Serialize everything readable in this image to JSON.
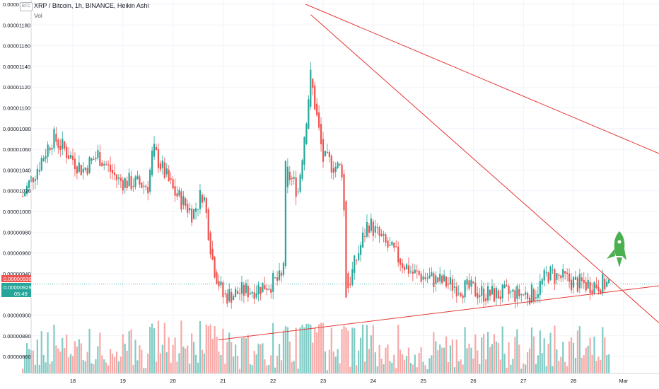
{
  "header": {
    "title": "XRP / Bitcoin, 1h, BINANCE, Heikin Ashi",
    "volume_label": "Vol",
    "currency_badge": "BTC"
  },
  "price_tags": {
    "red": "0.00000930",
    "green": "0.00000929",
    "countdown": "05:49",
    "red_color": "#ef5350",
    "green_color": "#26a69a"
  },
  "colors": {
    "up": "#26a69a",
    "down": "#ef5350",
    "vol_up": "#80cbc4",
    "vol_down": "#f7a9a7",
    "trendline": "#e53935",
    "rocket": "#4caf50"
  },
  "chart_data": {
    "type": "candlestick",
    "title": "XRP / Bitcoin, 1h, BINANCE, Heikin Ashi",
    "y_tick_labels": [
      "0.00001200",
      "0.00001180",
      "0.00001160",
      "0.00001140",
      "0.00001120",
      "0.00001100",
      "0.00001080",
      "0.00001060",
      "0.00001040",
      "0.00001020",
      "0.00001000",
      "0.00000980",
      "0.00000960",
      "0.00000940",
      "0.00000920",
      "0.00000900",
      "0.00000880",
      "0.00000860"
    ],
    "x_tick_labels": [
      "18",
      "19",
      "20",
      "21",
      "22",
      "23",
      "24",
      "25",
      "26",
      "27",
      "28",
      "Mar"
    ],
    "ylim": [
      8.5e-06,
      1.2e-05
    ],
    "x_day_range": [
      17.0,
      29.0
    ],
    "grid": true,
    "key_points": [
      {
        "day": 17.0,
        "price": 1.015e-05
      },
      {
        "day": 17.6,
        "price": 1.072e-05
      },
      {
        "day": 18.2,
        "price": 1.04e-05
      },
      {
        "day": 18.5,
        "price": 1.055e-05
      },
      {
        "day": 18.9,
        "price": 1.03e-05
      },
      {
        "day": 19.5,
        "price": 1.025e-05
      },
      {
        "day": 19.6,
        "price": 1.06e-05
      },
      {
        "day": 20.0,
        "price": 1.02e-05
      },
      {
        "day": 20.4,
        "price": 9.98e-06
      },
      {
        "day": 20.6,
        "price": 1.02e-05
      },
      {
        "day": 20.8,
        "price": 9.5e-06
      },
      {
        "day": 21.0,
        "price": 9.18e-06
      },
      {
        "day": 21.6,
        "price": 9.25e-06
      },
      {
        "day": 22.2,
        "price": 9.35e-06
      },
      {
        "day": 22.25,
        "price": 1.04e-05
      },
      {
        "day": 22.5,
        "price": 1.02e-05
      },
      {
        "day": 22.75,
        "price": 1.13e-05
      },
      {
        "day": 23.0,
        "price": 1.05e-05
      },
      {
        "day": 23.4,
        "price": 1.04e-05
      },
      {
        "day": 23.45,
        "price": 9.2e-06
      },
      {
        "day": 23.7,
        "price": 9.6e-06
      },
      {
        "day": 23.9,
        "price": 9.9e-06
      },
      {
        "day": 24.2,
        "price": 9.7e-06
      },
      {
        "day": 24.8,
        "price": 9.4e-06
      },
      {
        "day": 25.5,
        "price": 9.3e-06
      },
      {
        "day": 26.3,
        "price": 9.2e-06
      },
      {
        "day": 27.2,
        "price": 9.2e-06
      },
      {
        "day": 27.5,
        "price": 9.4e-06
      },
      {
        "day": 28.1,
        "price": 9.3e-06
      },
      {
        "day": 28.6,
        "price": 9.3e-06
      }
    ],
    "trendlines": [
      {
        "name": "upper",
        "points": [
          {
            "day": 22.65,
            "price": 1.2e-05
          },
          {
            "day": 30.0,
            "price": 1.05e-05
          }
        ]
      },
      {
        "name": "descending",
        "points": [
          {
            "day": 22.75,
            "price": 1.19e-05
          },
          {
            "day": 30.0,
            "price": 8.8e-06
          }
        ]
      },
      {
        "name": "ascending support",
        "points": [
          {
            "day": 20.9,
            "price": 8.76e-06
          },
          {
            "day": 30.0,
            "price": 9.3e-06
          }
        ]
      }
    ],
    "volume": {
      "label": "Vol"
    }
  }
}
